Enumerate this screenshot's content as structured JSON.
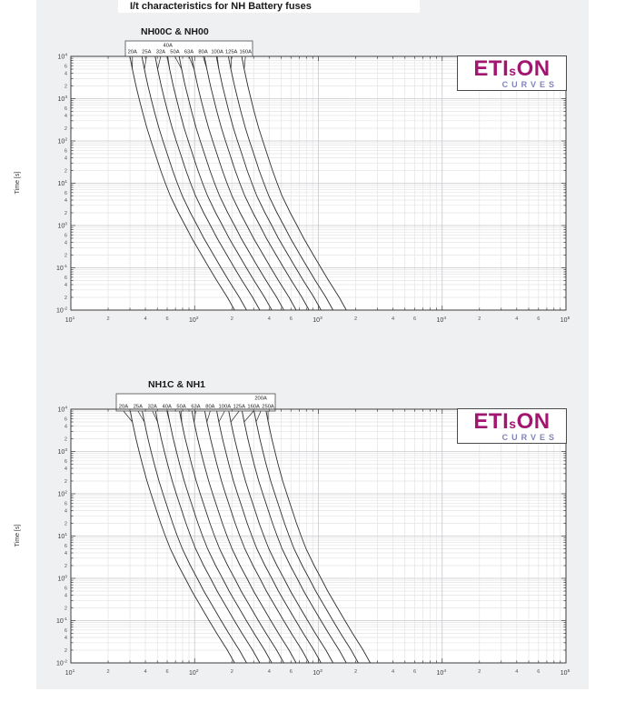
{
  "page": {
    "title": "I/t characteristics for NH Battery fuses"
  },
  "logo": {
    "brand": "ETI",
    "brand_small": "s",
    "brand_suffix": "ON",
    "subtitle": "CURVES",
    "brand_color": "#a21570",
    "subtitle_color": "#8184b8"
  },
  "chart_data": [
    {
      "type": "line",
      "title": "NH00C & NH00",
      "xlabel": "",
      "ylabel": "Time [s]",
      "x_scale": "log",
      "y_scale": "log",
      "grid": true,
      "x_tick_exponents": [
        1,
        2,
        3,
        4,
        5
      ],
      "y_tick_exponents": [
        4,
        3,
        2,
        1,
        0,
        -1,
        -2
      ],
      "x_minor_tick_labels": [
        2,
        4,
        6
      ],
      "y_minor_tick_labels": [
        6,
        4,
        2
      ],
      "legend": {
        "position": "top",
        "top_row": [
          "40A"
        ],
        "bottom_row": [
          "20A",
          "25A",
          "32A",
          "50A",
          "63A",
          "80A",
          "100A",
          "125A",
          "160A"
        ]
      },
      "series": [
        {
          "name": "20A",
          "rating_A": 20
        },
        {
          "name": "25A",
          "rating_A": 25
        },
        {
          "name": "32A",
          "rating_A": 32
        },
        {
          "name": "40A",
          "rating_A": 40
        },
        {
          "name": "50A",
          "rating_A": 50
        },
        {
          "name": "63A",
          "rating_A": 63
        },
        {
          "name": "80A",
          "rating_A": 80
        },
        {
          "name": "100A",
          "rating_A": 100
        },
        {
          "name": "125A",
          "rating_A": 125
        },
        {
          "name": "160A",
          "rating_A": 160
        }
      ],
      "melting_profile": {
        "times_s": [
          10000,
          5000,
          2000,
          1000,
          500,
          200,
          100,
          50,
          20,
          10,
          5,
          2,
          1,
          0.5,
          0.2,
          0.1,
          0.05,
          0.02,
          0.01
        ],
        "current_over_rating": [
          1.5,
          1.57,
          1.68,
          1.78,
          1.89,
          2.06,
          2.22,
          2.4,
          2.66,
          2.9,
          3.18,
          3.7,
          4.2,
          4.75,
          5.7,
          6.55,
          7.55,
          9.2,
          10.5
        ]
      }
    },
    {
      "type": "line",
      "title": "NH1C & NH1",
      "xlabel": "",
      "ylabel": "Time [s]",
      "x_scale": "log",
      "y_scale": "log",
      "grid": true,
      "x_tick_exponents": [
        1,
        2,
        3,
        4,
        5
      ],
      "y_tick_exponents": [
        4,
        3,
        2,
        1,
        0,
        -1,
        -2
      ],
      "x_minor_tick_labels": [
        2,
        4,
        6
      ],
      "y_minor_tick_labels": [
        6,
        4,
        2
      ],
      "legend": {
        "position": "top",
        "top_row": [
          "200A"
        ],
        "bottom_row": [
          "20A",
          "25A",
          "32A",
          "40A",
          "50A",
          "63A",
          "80A",
          "100A",
          "125A",
          "160A",
          "250A"
        ]
      },
      "series": [
        {
          "name": "20A",
          "rating_A": 20
        },
        {
          "name": "25A",
          "rating_A": 25
        },
        {
          "name": "32A",
          "rating_A": 32
        },
        {
          "name": "40A",
          "rating_A": 40
        },
        {
          "name": "50A",
          "rating_A": 50
        },
        {
          "name": "63A",
          "rating_A": 63
        },
        {
          "name": "80A",
          "rating_A": 80
        },
        {
          "name": "100A",
          "rating_A": 100
        },
        {
          "name": "125A",
          "rating_A": 125
        },
        {
          "name": "160A",
          "rating_A": 160
        },
        {
          "name": "200A",
          "rating_A": 200
        },
        {
          "name": "250A",
          "rating_A": 250
        }
      ],
      "melting_profile": {
        "times_s": [
          10000,
          5000,
          2000,
          1000,
          500,
          200,
          100,
          50,
          20,
          10,
          5,
          2,
          1,
          0.5,
          0.2,
          0.1,
          0.05,
          0.02,
          0.01
        ],
        "current_over_rating": [
          1.5,
          1.57,
          1.68,
          1.78,
          1.89,
          2.06,
          2.22,
          2.4,
          2.66,
          2.9,
          3.18,
          3.7,
          4.2,
          4.75,
          5.7,
          6.55,
          7.55,
          9.2,
          10.5
        ]
      }
    }
  ]
}
